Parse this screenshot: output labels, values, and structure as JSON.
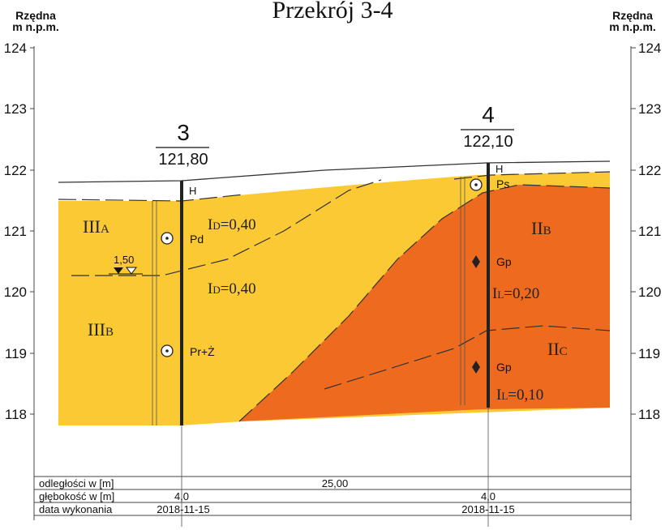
{
  "title": "Przekrój 3-4",
  "axis": {
    "left_label_1": "Rzędna",
    "left_label_2": "m n.p.m.",
    "right_label_1": "Rzędna",
    "right_label_2": "m n.p.m.",
    "ticks": [
      "124",
      "123",
      "122",
      "121",
      "120",
      "119",
      "118"
    ]
  },
  "boreholes": [
    {
      "number": "3",
      "elevation": "121,80",
      "top_label": "H",
      "samples": [
        {
          "symbol": "circle-dot",
          "label": "Pd"
        },
        {
          "symbol": "circle-dot",
          "label": "Pr+Ż"
        }
      ],
      "water_level": "1,50"
    },
    {
      "number": "4",
      "elevation": "122,10",
      "top_label": "H",
      "samples": [
        {
          "symbol": "circle-dot",
          "label": "Ps"
        },
        {
          "symbol": "diamond",
          "label": "Gp"
        },
        {
          "symbol": "diamond",
          "label": "Gp"
        }
      ]
    }
  ],
  "layers": {
    "IIIA": {
      "main": "III",
      "sub": "A"
    },
    "IIIB": {
      "main": "III",
      "sub": "B"
    },
    "IIB": {
      "main": "II",
      "sub": "B"
    },
    "IIC": {
      "main": "II",
      "sub": "C"
    }
  },
  "parameters": {
    "id_upper": {
      "main": "I",
      "sub": "D",
      "value": "=0,40"
    },
    "id_lower": {
      "main": "I",
      "sub": "D",
      "value": "=0,40"
    },
    "il_upper": {
      "main": "I",
      "sub": "L",
      "value": "=0,20"
    },
    "il_lower": {
      "main": "I",
      "sub": "L",
      "value": "=0,10"
    }
  },
  "table": {
    "row1_label": "odległości w [m]",
    "row1_value": "25,00",
    "row2_label": "głębokość w [m]",
    "row2_value_3": "4,0",
    "row2_value_4": "4,0",
    "row3_label": "data wykonania",
    "row3_value_3": "2018-11-15",
    "row3_value_4": "2018-11-15"
  },
  "colors": {
    "sand": "#fbc934",
    "clay": "#ed6a1f",
    "line": "#222222"
  }
}
